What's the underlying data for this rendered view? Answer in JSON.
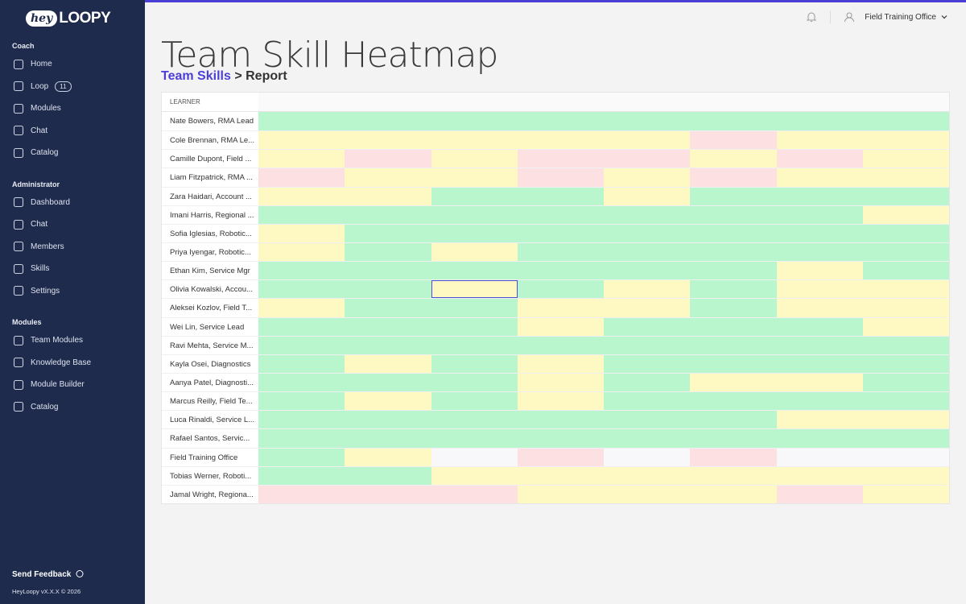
{
  "sidebar": {
    "logo": {
      "hey": "hey",
      "loopy": "LOOPY"
    },
    "sections": [
      {
        "title": "Coach",
        "items": [
          {
            "label": "Home"
          },
          {
            "label": "Loop",
            "badge": "11"
          },
          {
            "label": "Modules"
          },
          {
            "label": "Chat"
          },
          {
            "label": "Catalog"
          }
        ]
      },
      {
        "title": "Administrator",
        "items": [
          {
            "label": "Dashboard"
          },
          {
            "label": "Chat"
          },
          {
            "label": "Members"
          },
          {
            "label": "Skills"
          },
          {
            "label": "Settings"
          }
        ]
      },
      {
        "title": "Modules",
        "items": [
          {
            "label": "Team Modules"
          },
          {
            "label": "Knowledge Base"
          },
          {
            "label": "Module Builder"
          },
          {
            "label": "Catalog"
          }
        ]
      }
    ],
    "feedback": "Send Feedback",
    "version": "HeyLoopy vX.X.X © 2026"
  },
  "topbar": {
    "user": "Field Training Office"
  },
  "header": {
    "title": "Team Skill Heatmap",
    "breadcrumb": {
      "link": "Team Skills",
      "separator": ">",
      "current": "Report"
    }
  },
  "table": {
    "header": "LEARNER",
    "rows": [
      {
        "name": "Nate Bowers, RMA Lead",
        "cells": [
          "#b9f6ce",
          "#b9f6ce",
          "#b9f6ce",
          "#b9f6ce",
          "#b9f6ce",
          "#b9f6ce",
          "#b9f6ce",
          "#b9f6ce"
        ]
      },
      {
        "name": "Cole Brennan, RMA Le...",
        "cells": [
          "#fef9c3",
          "#fef9c3",
          "#fef9c3",
          "#fef9c3",
          "#fef9c3",
          "#fde0e1",
          "#fef9c3",
          "#fef9c3"
        ]
      },
      {
        "name": "Camille Dupont, Field ...",
        "cells": [
          "#fef9c3",
          "#fde0e1",
          "#fef9c3",
          "#fde0e1",
          "#fde0e1",
          "#fef9c3",
          "#fde0e1",
          "#fef9c3"
        ]
      },
      {
        "name": "Liam Fitzpatrick, RMA ...",
        "cells": [
          "#fde0e1",
          "#fef9c3",
          "#fef9c3",
          "#fde0e1",
          "#fef9c3",
          "#fde0e1",
          "#fef9c3",
          "#fef9c3"
        ]
      },
      {
        "name": "Zara Haidari, Account ...",
        "cells": [
          "#fef9c3",
          "#fef9c3",
          "#b9f6ce",
          "#b9f6ce",
          "#fef9c3",
          "#b9f6ce",
          "#b9f6ce",
          "#b9f6ce"
        ]
      },
      {
        "name": "Imani Harris, Regional ...",
        "cells": [
          "#b9f6ce",
          "#b9f6ce",
          "#b9f6ce",
          "#b9f6ce",
          "#b9f6ce",
          "#b9f6ce",
          "#b9f6ce",
          "#fef9c3"
        ]
      },
      {
        "name": "Sofia Iglesias, Robotic...",
        "cells": [
          "#fef9c3",
          "#b9f6ce",
          "#b9f6ce",
          "#b9f6ce",
          "#b9f6ce",
          "#b9f6ce",
          "#b9f6ce",
          "#b9f6ce"
        ]
      },
      {
        "name": "Priya Iyengar, Robotic...",
        "cells": [
          "#fef9c3",
          "#b9f6ce",
          "#fef9c3",
          "#b9f6ce",
          "#b9f6ce",
          "#b9f6ce",
          "#b9f6ce",
          "#b9f6ce"
        ]
      },
      {
        "name": "Ethan Kim, Service Mgr",
        "cells": [
          "#b9f6ce",
          "#b9f6ce",
          "#b9f6ce",
          "#b9f6ce",
          "#b9f6ce",
          "#b9f6ce",
          "#fef9c3",
          "#b9f6ce"
        ]
      },
      {
        "name": "Olivia Kowalski, Accou...",
        "cells": [
          "#b9f6ce",
          "#b9f6ce",
          "#fef9c3",
          "#b9f6ce",
          "#fef9c3",
          "#b9f6ce",
          "#fef9c3",
          "#fef9c3"
        ]
      },
      {
        "name": "Aleksei Kozlov, Field T...",
        "cells": [
          "#fef9c3",
          "#b9f6ce",
          "#b9f6ce",
          "#fef9c3",
          "#fef9c3",
          "#b9f6ce",
          "#fef9c3",
          "#fef9c3"
        ]
      },
      {
        "name": "Wei Lin, Service Lead",
        "cells": [
          "#b9f6ce",
          "#b9f6ce",
          "#b9f6ce",
          "#fef9c3",
          "#b9f6ce",
          "#b9f6ce",
          "#b9f6ce",
          "#fef9c3"
        ]
      },
      {
        "name": "Ravi Mehta, Service M...",
        "cells": [
          "#b9f6ce",
          "#b9f6ce",
          "#b9f6ce",
          "#b9f6ce",
          "#b9f6ce",
          "#b9f6ce",
          "#b9f6ce",
          "#b9f6ce"
        ]
      },
      {
        "name": "Kayla Osei, Diagnostics",
        "cells": [
          "#b9f6ce",
          "#fef9c3",
          "#b9f6ce",
          "#fef9c3",
          "#b9f6ce",
          "#b9f6ce",
          "#b9f6ce",
          "#b9f6ce"
        ]
      },
      {
        "name": "Aanya Patel, Diagnosti...",
        "cells": [
          "#b9f6ce",
          "#b9f6ce",
          "#b9f6ce",
          "#fef9c3",
          "#b9f6ce",
          "#fef9c3",
          "#fef9c3",
          "#b9f6ce"
        ]
      },
      {
        "name": "Marcus Reilly, Field Te...",
        "cells": [
          "#b9f6ce",
          "#fef9c3",
          "#b9f6ce",
          "#fef9c3",
          "#b9f6ce",
          "#b9f6ce",
          "#b9f6ce",
          "#b9f6ce"
        ]
      },
      {
        "name": "Luca Rinaldi, Service L...",
        "cells": [
          "#b9f6ce",
          "#b9f6ce",
          "#b9f6ce",
          "#b9f6ce",
          "#b9f6ce",
          "#b9f6ce",
          "#fef9c3",
          "#fef9c3"
        ]
      },
      {
        "name": "Rafael Santos, Servic...",
        "cells": [
          "#b9f6ce",
          "#b9f6ce",
          "#b9f6ce",
          "#b9f6ce",
          "#b9f6ce",
          "#b9f6ce",
          "#b9f6ce",
          "#b9f6ce"
        ]
      },
      {
        "name": "Field Training Office",
        "cells": [
          "#b9f6ce",
          "#fef9c3",
          "#f8f8fa",
          "#fde0e1",
          "#f8f8fa",
          "#fde0e1",
          "#f8f8fa",
          "#f8f8fa"
        ]
      },
      {
        "name": "Tobias Werner, Roboti...",
        "cells": [
          "#b9f6ce",
          "#b9f6ce",
          "#fef9c3",
          "#fef9c3",
          "#fef9c3",
          "#fef9c3",
          "#fef9c3",
          "#fef9c3"
        ]
      },
      {
        "name": "Jamal Wright, Regiona...",
        "cells": [
          "#fde0e1",
          "#fde0e1",
          "#fde0e1",
          "#fef9c3",
          "#fef9c3",
          "#fef9c3",
          "#fde0e1",
          "#fef9c3"
        ]
      }
    ],
    "selected": {
      "row": 9,
      "col": 2,
      "color": "#4b4fd6"
    }
  }
}
